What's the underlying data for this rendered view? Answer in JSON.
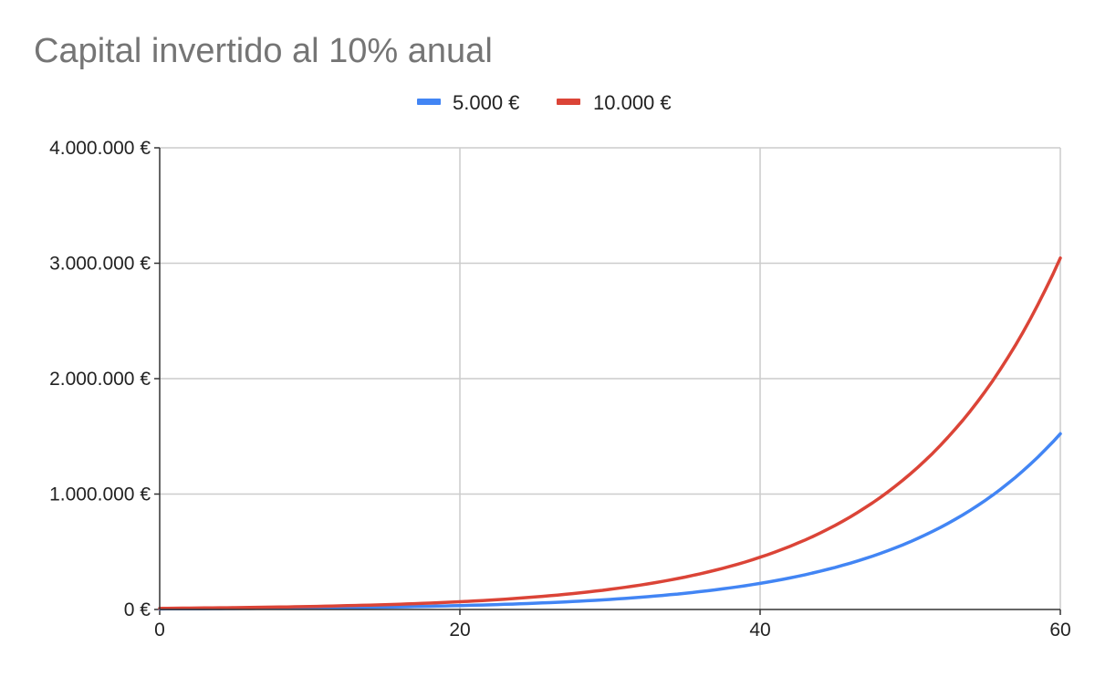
{
  "chart_data": {
    "type": "line",
    "title": "Capital invertido al 10% anual",
    "xlabel": "",
    "ylabel": "",
    "xlim": [
      0,
      60
    ],
    "ylim": [
      0,
      4000000
    ],
    "x_ticks": [
      0,
      20,
      40,
      60
    ],
    "x_tick_labels": [
      "0",
      "20",
      "40",
      "60"
    ],
    "y_ticks": [
      0,
      1000000,
      2000000,
      3000000,
      4000000
    ],
    "y_tick_labels": [
      "0 €",
      "1.000.000 €",
      "2.000.000 €",
      "3.000.000 €",
      "4.000.000 €"
    ],
    "grid": true,
    "legend_position": "top-center",
    "x": [
      0,
      5,
      10,
      15,
      20,
      25,
      30,
      35,
      40,
      45,
      50,
      55,
      60
    ],
    "series": [
      {
        "name": "5.000 €",
        "color": "#4285F4",
        "values": [
          5000,
          8053,
          12969,
          20886,
          33638,
          54174,
          87247,
          140512,
          226296,
          364452,
          586954,
          945296,
          1522408
        ]
      },
      {
        "name": "10.000 €",
        "color": "#DB4437",
        "values": [
          10000,
          16105,
          25937,
          41772,
          67275,
          108347,
          174494,
          281024,
          452593,
          728905,
          1173909,
          1890591,
          3044816
        ]
      }
    ]
  }
}
